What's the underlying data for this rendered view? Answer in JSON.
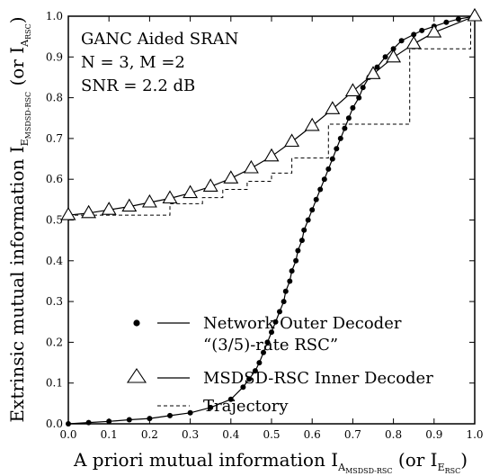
{
  "chart_data": {
    "type": "line",
    "annotation": [
      "GANC Aided SRAN",
      "N = 3, M =2",
      "SNR = 2.2 dB"
    ],
    "xlabel": {
      "main": "A priori mutual information I",
      "sub": "A",
      "subsub": "MSDSD-RSC",
      "paren_open": " (or I",
      "paren_sub": "E",
      "paren_subsub": "RSC",
      "paren_close": ")"
    },
    "ylabel": {
      "main": "Extrinsic mutual information I",
      "sub": "E",
      "subsub": "MSDSD-RSC",
      "paren_open": " (or I",
      "paren_sub": "A",
      "paren_subsub": "RSC",
      "paren_close": ")"
    },
    "xlim": [
      0,
      1
    ],
    "ylim": [
      0,
      1
    ],
    "xticks": [
      "0.0",
      "0.1",
      "0.2",
      "0.3",
      "0.4",
      "0.5",
      "0.6",
      "0.7",
      "0.8",
      "0.9",
      "1.0"
    ],
    "yticks": [
      "0.0",
      "0.1",
      "0.2",
      "0.3",
      "0.4",
      "0.5",
      "0.6",
      "0.7",
      "0.8",
      "0.9",
      "1.0"
    ],
    "legend_position": "bottom-right",
    "series": [
      {
        "name": "Network Outer Decoder “(3/5)-rate RSC”",
        "legend_lines": [
          "Network Outer Decoder",
          "“(3/5)-rate RSC”"
        ],
        "marker": "filled-circle",
        "note": "curve plotted with x = I_A(RSC) on vertical axis, y = I_E(RSC) on horizontal axis",
        "points": [
          [
            0.0,
            0.0
          ],
          [
            0.003,
            0.05
          ],
          [
            0.006,
            0.1
          ],
          [
            0.01,
            0.15
          ],
          [
            0.013,
            0.2
          ],
          [
            0.02,
            0.25
          ],
          [
            0.027,
            0.3
          ],
          [
            0.04,
            0.35
          ],
          [
            0.06,
            0.4
          ],
          [
            0.09,
            0.43
          ],
          [
            0.11,
            0.445
          ],
          [
            0.13,
            0.46
          ],
          [
            0.15,
            0.47
          ],
          [
            0.175,
            0.48
          ],
          [
            0.2,
            0.49
          ],
          [
            0.225,
            0.5
          ],
          [
            0.25,
            0.51
          ],
          [
            0.275,
            0.52
          ],
          [
            0.3,
            0.53
          ],
          [
            0.325,
            0.535
          ],
          [
            0.35,
            0.545
          ],
          [
            0.375,
            0.55
          ],
          [
            0.4,
            0.56
          ],
          [
            0.425,
            0.565
          ],
          [
            0.45,
            0.575
          ],
          [
            0.475,
            0.58
          ],
          [
            0.5,
            0.59
          ],
          [
            0.525,
            0.6
          ],
          [
            0.55,
            0.61
          ],
          [
            0.575,
            0.62
          ],
          [
            0.6,
            0.63
          ],
          [
            0.625,
            0.64
          ],
          [
            0.65,
            0.65
          ],
          [
            0.675,
            0.66
          ],
          [
            0.7,
            0.67
          ],
          [
            0.725,
            0.68
          ],
          [
            0.75,
            0.69
          ],
          [
            0.775,
            0.7
          ],
          [
            0.8,
            0.715
          ],
          [
            0.825,
            0.725
          ],
          [
            0.85,
            0.74
          ],
          [
            0.875,
            0.76
          ],
          [
            0.9,
            0.78
          ],
          [
            0.92,
            0.8
          ],
          [
            0.94,
            0.82
          ],
          [
            0.955,
            0.85
          ],
          [
            0.965,
            0.87
          ],
          [
            0.975,
            0.9
          ],
          [
            0.985,
            0.93
          ],
          [
            0.993,
            0.96
          ],
          [
            1.0,
            1.0
          ]
        ]
      },
      {
        "name": "MSDSD-RSC Inner Decoder",
        "legend_lines": [
          "MSDSD-RSC Inner Decoder"
        ],
        "marker": "open-triangle",
        "points": [
          [
            0.0,
            0.512
          ],
          [
            0.05,
            0.517
          ],
          [
            0.1,
            0.525
          ],
          [
            0.15,
            0.533
          ],
          [
            0.2,
            0.543
          ],
          [
            0.25,
            0.553
          ],
          [
            0.3,
            0.566
          ],
          [
            0.35,
            0.582
          ],
          [
            0.4,
            0.602
          ],
          [
            0.45,
            0.627
          ],
          [
            0.5,
            0.656
          ],
          [
            0.55,
            0.692
          ],
          [
            0.6,
            0.731
          ],
          [
            0.65,
            0.772
          ],
          [
            0.7,
            0.816
          ],
          [
            0.75,
            0.858
          ],
          [
            0.8,
            0.899
          ],
          [
            0.85,
            0.932
          ],
          [
            0.9,
            0.96
          ],
          [
            1.0,
            1.0
          ]
        ]
      },
      {
        "name": "Trajectory",
        "legend_lines": [
          "Trajectory"
        ],
        "marker": "none",
        "style": "dashed",
        "points": [
          [
            0.0,
            0.512
          ],
          [
            0.25,
            0.512
          ],
          [
            0.25,
            0.54
          ],
          [
            0.33,
            0.54
          ],
          [
            0.33,
            0.555
          ],
          [
            0.38,
            0.555
          ],
          [
            0.38,
            0.575
          ],
          [
            0.44,
            0.575
          ],
          [
            0.44,
            0.595
          ],
          [
            0.5,
            0.595
          ],
          [
            0.5,
            0.615
          ],
          [
            0.55,
            0.615
          ],
          [
            0.55,
            0.652
          ],
          [
            0.64,
            0.652
          ],
          [
            0.64,
            0.735
          ],
          [
            0.84,
            0.735
          ],
          [
            0.84,
            0.92
          ],
          [
            0.99,
            0.92
          ],
          [
            0.99,
            1.0
          ]
        ]
      }
    ]
  }
}
